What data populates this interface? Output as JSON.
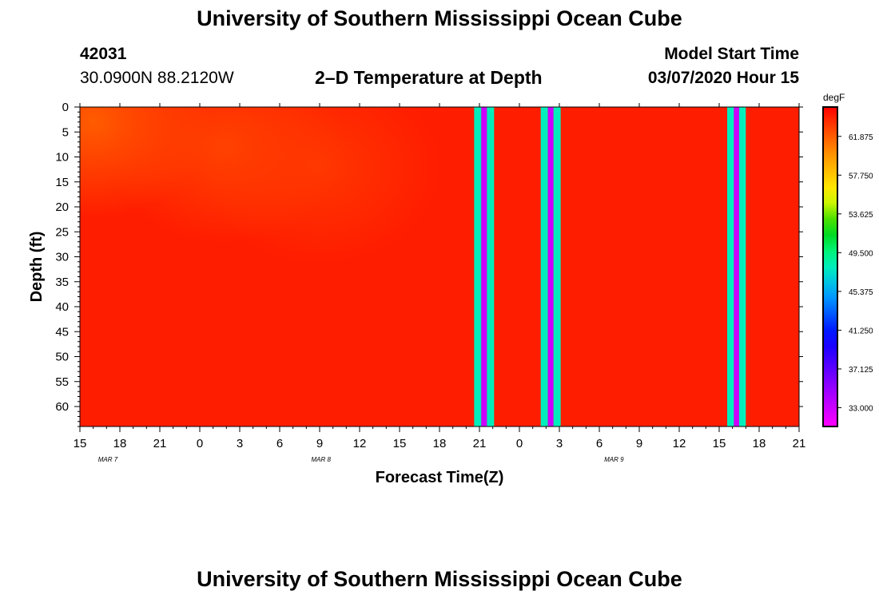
{
  "header": {
    "title_top": "University of Southern Mississippi Ocean Cube",
    "title_bottom": "University of Southern Mississippi Ocean Cube",
    "station_id": "42031",
    "coordinates": "30.0900N 88.2120W",
    "product": "2–D Temperature at Depth",
    "model_label": "Model Start Time",
    "model_start": "03/07/2020 Hour 15"
  },
  "chart_data": {
    "type": "heatmap",
    "title": "2–D Temperature at Depth",
    "xlabel": "Forecast Time(Z)",
    "ylabel": "Depth (ft)",
    "x_tick_labels": [
      "15",
      "18",
      "21",
      "0",
      "3",
      "6",
      "9",
      "12",
      "15",
      "18",
      "21",
      "0",
      "3",
      "6",
      "9",
      "12",
      "15",
      "18",
      "21"
    ],
    "date_labels": [
      {
        "label": "MAR 7",
        "at_hour": 1.5
      },
      {
        "label": "MAR 8",
        "at_hour": 17.5
      },
      {
        "label": "MAR 9",
        "at_hour": 39.5
      }
    ],
    "xlim_forecast_hours": [
      0,
      54
    ],
    "y_ticks": [
      0,
      5,
      10,
      15,
      20,
      25,
      30,
      35,
      40,
      45,
      50,
      55,
      60
    ],
    "ylim_ft": [
      0,
      64
    ],
    "colorbar": {
      "units": "degF",
      "tick_labels": [
        "61.875",
        "57.750",
        "53.625",
        "49.500",
        "45.375",
        "41.250",
        "37.125",
        "33.000"
      ],
      "tick_values": [
        61.875,
        57.75,
        53.625,
        49.5,
        45.375,
        41.25,
        37.125,
        33.0
      ],
      "range": [
        31.0,
        65.0
      ]
    },
    "background_temperature_degF": 64.0,
    "warm_surface_patches": [
      {
        "hour": 1.0,
        "depth": 3,
        "temp": 61.5
      },
      {
        "hour": 11.0,
        "depth": 8,
        "temp": 62.5
      },
      {
        "hour": 18.0,
        "depth": 12,
        "temp": 63.0
      }
    ],
    "missing_data_bands": [
      {
        "from_hour": 29.6,
        "to_hour": 31.1,
        "edge_temp": 48.0,
        "core_temp": 33.0
      },
      {
        "from_hour": 34.6,
        "to_hour": 36.1,
        "edge_temp": 48.0,
        "core_temp": 33.0
      },
      {
        "from_hour": 48.6,
        "to_hour": 50.0,
        "edge_temp": 48.0,
        "core_temp": 33.0
      }
    ]
  }
}
